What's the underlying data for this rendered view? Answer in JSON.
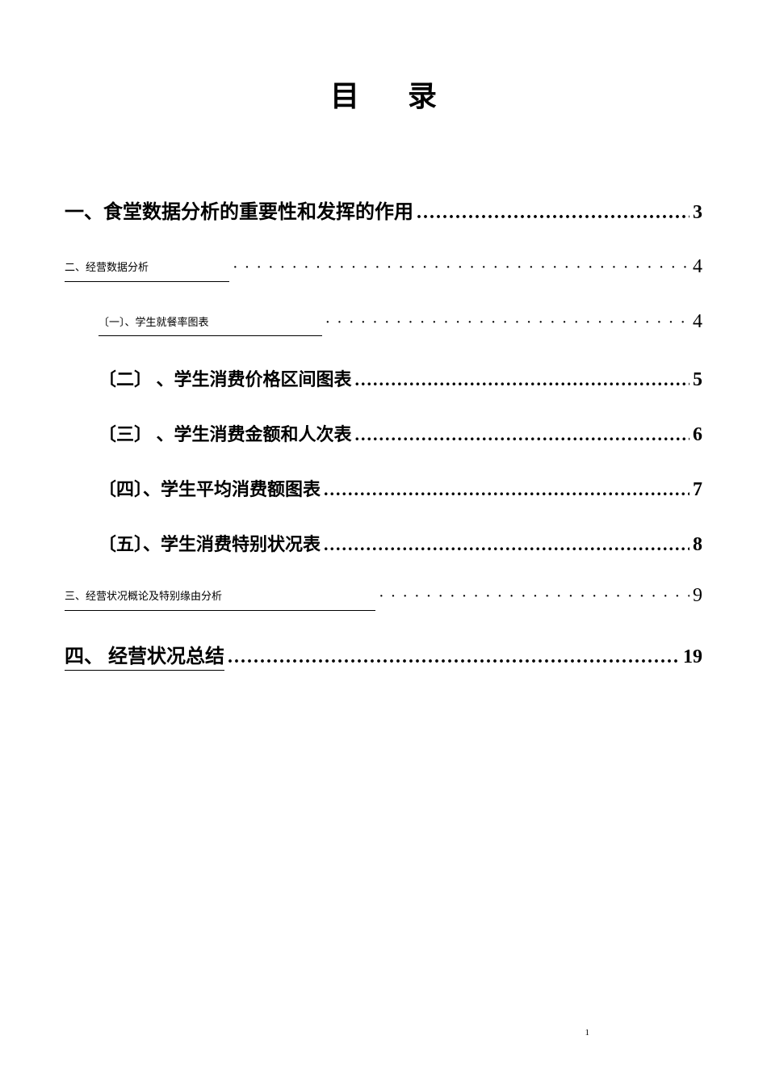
{
  "title": "目录",
  "toc": {
    "entries": [
      {
        "label": "一、食堂数据分析的重要性和发挥的作用",
        "page": "3",
        "level": "level-1",
        "dotStyle": "normal",
        "pageBold": true,
        "extraClass": "spacing-large"
      },
      {
        "label": "二、经营数据分析",
        "page": "4",
        "level": "level-1 small-text",
        "dotStyle": "wide-dots",
        "pageBold": false,
        "extraClass": "spacing-mid"
      },
      {
        "label": "〔一〕、学生就餐率图表",
        "page": "4",
        "level": "level-2 small-text-2",
        "dotStyle": "wide-dots",
        "pageBold": false,
        "extraClass": "spacing-mid"
      },
      {
        "label": "〔二〕 、学生消费价格区间图表",
        "page": "5",
        "level": "level-2",
        "dotStyle": "normal",
        "pageBold": true,
        "extraClass": "spacing-mid"
      },
      {
        "label": "〔三〕 、学生消费金额和人次表",
        "page": "6",
        "level": "level-2",
        "dotStyle": "normal",
        "pageBold": true,
        "extraClass": "spacing-mid"
      },
      {
        "label": "〔四〕、学生平均消费额图表",
        "page": "7",
        "level": "level-2",
        "dotStyle": "normal",
        "pageBold": true,
        "extraClass": "spacing-mid"
      },
      {
        "label": "〔五〕、学生消费特别状况表",
        "page": "8",
        "level": "level-2",
        "dotStyle": "normal",
        "pageBold": true,
        "extraClass": "spacing-mid"
      },
      {
        "label": "三、经营状况概论及特别缘由分析",
        "page": "9",
        "level": "level-1 small-text-3",
        "dotStyle": "wide-dots",
        "pageBold": false,
        "extraClass": "spacing-mid"
      },
      {
        "label": "四、 经营状况总结",
        "page": "19",
        "level": "level-1 with-underline",
        "dotStyle": "normal",
        "pageBold": true,
        "extraClass": ""
      }
    ]
  },
  "pageNumber": "1",
  "dotsNormal": ".......................................................................................................................................",
  "dotsWide": "····································································"
}
